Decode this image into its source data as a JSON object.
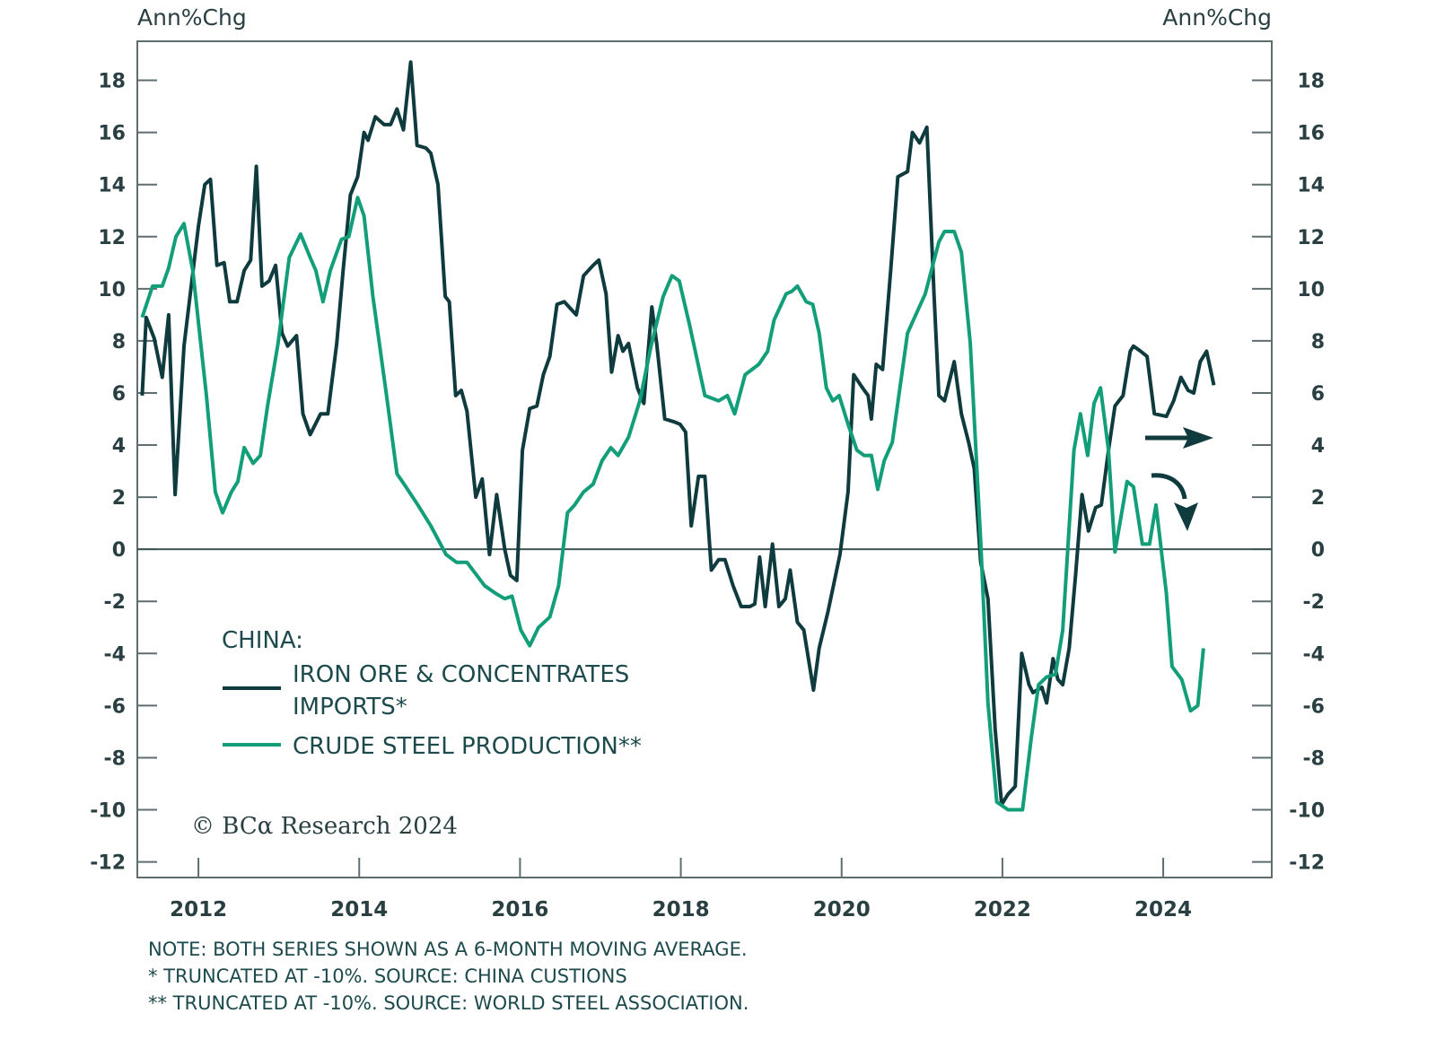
{
  "chart_data": {
    "type": "line",
    "left_axis_label": "Ann%Chg",
    "right_axis_label": "Ann%Chg",
    "ylim": [
      -12.6,
      19.5
    ],
    "xlim": [
      2011.24,
      2025.35
    ],
    "yticks": [
      -12,
      -10,
      -8,
      -6,
      -4,
      -2,
      0,
      2,
      4,
      6,
      8,
      10,
      12,
      14,
      16,
      18
    ],
    "xticks": [
      2012,
      2014,
      2016,
      2018,
      2020,
      2022,
      2024
    ],
    "zero_line": true,
    "grid": false,
    "legend_placement": "bottom-left",
    "legend_title": "CHINA:",
    "series": [
      {
        "name": "IRON ORE & CONCENTRATES IMPORTS*",
        "name_line1": "IRON ORE & CONCENTRATES",
        "name_line2": "IMPORTS*",
        "color": "#0f3b3e",
        "points": [
          [
            2011.3,
            5.9
          ],
          [
            2011.35,
            8.9
          ],
          [
            2011.45,
            8.1
          ],
          [
            2011.55,
            6.6
          ],
          [
            2011.63,
            9.0
          ],
          [
            2011.71,
            2.1
          ],
          [
            2011.82,
            7.8
          ],
          [
            2012.0,
            12.4
          ],
          [
            2012.08,
            14.0
          ],
          [
            2012.15,
            14.2
          ],
          [
            2012.23,
            10.9
          ],
          [
            2012.32,
            11.0
          ],
          [
            2012.39,
            9.5
          ],
          [
            2012.48,
            9.5
          ],
          [
            2012.57,
            10.7
          ],
          [
            2012.65,
            11.1
          ],
          [
            2012.72,
            14.7
          ],
          [
            2012.79,
            10.1
          ],
          [
            2012.88,
            10.3
          ],
          [
            2012.96,
            10.9
          ],
          [
            2013.04,
            8.3
          ],
          [
            2013.11,
            7.8
          ],
          [
            2013.22,
            8.2
          ],
          [
            2013.3,
            5.2
          ],
          [
            2013.39,
            4.4
          ],
          [
            2013.52,
            5.2
          ],
          [
            2013.61,
            5.2
          ],
          [
            2013.72,
            7.9
          ],
          [
            2013.8,
            10.7
          ],
          [
            2013.89,
            13.6
          ],
          [
            2013.98,
            14.3
          ],
          [
            2014.06,
            16.0
          ],
          [
            2014.11,
            15.7
          ],
          [
            2014.2,
            16.6
          ],
          [
            2014.31,
            16.3
          ],
          [
            2014.39,
            16.3
          ],
          [
            2014.47,
            16.9
          ],
          [
            2014.55,
            16.1
          ],
          [
            2014.64,
            18.7
          ],
          [
            2014.72,
            15.5
          ],
          [
            2014.83,
            15.4
          ],
          [
            2014.89,
            15.2
          ],
          [
            2014.98,
            14.0
          ],
          [
            2015.07,
            9.7
          ],
          [
            2015.12,
            9.5
          ],
          [
            2015.2,
            5.9
          ],
          [
            2015.27,
            6.1
          ],
          [
            2015.34,
            5.3
          ],
          [
            2015.45,
            2.0
          ],
          [
            2015.53,
            2.7
          ],
          [
            2015.62,
            -0.2
          ],
          [
            2015.71,
            2.1
          ],
          [
            2015.81,
            0
          ],
          [
            2015.88,
            -1.0
          ],
          [
            2015.96,
            -1.2
          ],
          [
            2016.03,
            3.8
          ],
          [
            2016.12,
            5.4
          ],
          [
            2016.21,
            5.5
          ],
          [
            2016.29,
            6.7
          ],
          [
            2016.37,
            7.4
          ],
          [
            2016.46,
            9.4
          ],
          [
            2016.55,
            9.5
          ],
          [
            2016.7,
            9.0
          ],
          [
            2016.79,
            10.5
          ],
          [
            2016.91,
            10.9
          ],
          [
            2016.98,
            11.1
          ],
          [
            2017.07,
            9.8
          ],
          [
            2017.14,
            6.8
          ],
          [
            2017.22,
            8.2
          ],
          [
            2017.28,
            7.6
          ],
          [
            2017.35,
            7.9
          ],
          [
            2017.46,
            6.2
          ],
          [
            2017.54,
            5.6
          ],
          [
            2017.64,
            9.3
          ],
          [
            2017.7,
            7.9
          ],
          [
            2017.8,
            5.0
          ],
          [
            2017.91,
            4.9
          ],
          [
            2017.99,
            4.8
          ],
          [
            2018.06,
            4.5
          ],
          [
            2018.13,
            0.9
          ],
          [
            2018.22,
            2.8
          ],
          [
            2018.3,
            2.8
          ],
          [
            2018.38,
            -0.8
          ],
          [
            2018.47,
            -0.4
          ],
          [
            2018.55,
            -0.4
          ],
          [
            2018.65,
            -1.4
          ],
          [
            2018.75,
            -2.2
          ],
          [
            2018.86,
            -2.2
          ],
          [
            2018.92,
            -2.1
          ],
          [
            2018.98,
            -0.3
          ],
          [
            2019.05,
            -2.2
          ],
          [
            2019.14,
            0.2
          ],
          [
            2019.22,
            -2.2
          ],
          [
            2019.3,
            -1.9
          ],
          [
            2019.36,
            -0.8
          ],
          [
            2019.45,
            -2.8
          ],
          [
            2019.53,
            -3.1
          ],
          [
            2019.65,
            -5.4
          ],
          [
            2019.72,
            -3.8
          ],
          [
            2019.83,
            -2.4
          ],
          [
            2019.98,
            -0.2
          ],
          [
            2020.08,
            2.2
          ],
          [
            2020.15,
            6.7
          ],
          [
            2020.26,
            6.2
          ],
          [
            2020.33,
            5.9
          ],
          [
            2020.37,
            5.0
          ],
          [
            2020.43,
            7.1
          ],
          [
            2020.51,
            6.9
          ],
          [
            2020.61,
            10.7
          ],
          [
            2020.7,
            14.3
          ],
          [
            2020.82,
            14.5
          ],
          [
            2020.88,
            16.0
          ],
          [
            2020.97,
            15.6
          ],
          [
            2021.06,
            16.2
          ],
          [
            2021.15,
            9.7
          ],
          [
            2021.21,
            5.9
          ],
          [
            2021.28,
            5.7
          ],
          [
            2021.4,
            7.2
          ],
          [
            2021.49,
            5.2
          ],
          [
            2021.58,
            4.1
          ],
          [
            2021.65,
            3.1
          ],
          [
            2021.73,
            -0.5
          ],
          [
            2021.82,
            -1.9
          ],
          [
            2021.91,
            -6.9
          ],
          [
            2021.99,
            -9.8
          ],
          [
            2022.07,
            -9.4
          ],
          [
            2022.16,
            -9.1
          ],
          [
            2022.24,
            -4.0
          ],
          [
            2022.33,
            -5.2
          ],
          [
            2022.38,
            -5.5
          ],
          [
            2022.49,
            -5.3
          ],
          [
            2022.55,
            -5.9
          ],
          [
            2022.63,
            -4.2
          ],
          [
            2022.69,
            -5.0
          ],
          [
            2022.75,
            -5.2
          ],
          [
            2022.83,
            -3.8
          ],
          [
            2022.91,
            -1.0
          ],
          [
            2022.99,
            2.1
          ],
          [
            2023.07,
            0.7
          ],
          [
            2023.16,
            1.6
          ],
          [
            2023.23,
            1.7
          ],
          [
            2023.32,
            3.8
          ],
          [
            2023.4,
            5.5
          ],
          [
            2023.5,
            5.9
          ],
          [
            2023.59,
            7.6
          ],
          [
            2023.63,
            7.8
          ],
          [
            2023.72,
            7.6
          ],
          [
            2023.8,
            7.4
          ],
          [
            2023.89,
            5.2
          ],
          [
            2024.04,
            5.1
          ],
          [
            2024.13,
            5.7
          ],
          [
            2024.22,
            6.6
          ],
          [
            2024.31,
            6.1
          ],
          [
            2024.38,
            6.0
          ],
          [
            2024.46,
            7.2
          ],
          [
            2024.54,
            7.6
          ],
          [
            2024.63,
            6.3
          ]
        ]
      },
      {
        "name": "CRUDE STEEL PRODUCTION**",
        "color": "#139e7a",
        "points": [
          [
            2011.3,
            8.9
          ],
          [
            2011.43,
            10.1
          ],
          [
            2011.55,
            10.1
          ],
          [
            2011.63,
            10.8
          ],
          [
            2011.72,
            12.0
          ],
          [
            2011.82,
            12.5
          ],
          [
            2011.93,
            10.7
          ],
          [
            2012.1,
            5.9
          ],
          [
            2012.21,
            2.2
          ],
          [
            2012.3,
            1.4
          ],
          [
            2012.41,
            2.2
          ],
          [
            2012.49,
            2.6
          ],
          [
            2012.57,
            3.9
          ],
          [
            2012.68,
            3.3
          ],
          [
            2012.77,
            3.6
          ],
          [
            2012.86,
            5.5
          ],
          [
            2012.99,
            7.9
          ],
          [
            2013.13,
            11.2
          ],
          [
            2013.27,
            12.1
          ],
          [
            2013.39,
            11.2
          ],
          [
            2013.46,
            10.7
          ],
          [
            2013.55,
            9.5
          ],
          [
            2013.64,
            10.7
          ],
          [
            2013.78,
            11.9
          ],
          [
            2013.87,
            12.0
          ],
          [
            2013.98,
            13.5
          ],
          [
            2014.06,
            12.8
          ],
          [
            2014.17,
            9.7
          ],
          [
            2014.34,
            5.9
          ],
          [
            2014.47,
            2.9
          ],
          [
            2014.58,
            2.4
          ],
          [
            2014.73,
            1.7
          ],
          [
            2014.89,
            0.9
          ],
          [
            2015.08,
            -0.2
          ],
          [
            2015.21,
            -0.5
          ],
          [
            2015.34,
            -0.5
          ],
          [
            2015.56,
            -1.4
          ],
          [
            2015.7,
            -1.7
          ],
          [
            2015.81,
            -1.9
          ],
          [
            2015.9,
            -1.8
          ],
          [
            2016.01,
            -3.1
          ],
          [
            2016.12,
            -3.7
          ],
          [
            2016.23,
            -3.0
          ],
          [
            2016.37,
            -2.6
          ],
          [
            2016.48,
            -1.4
          ],
          [
            2016.59,
            1.4
          ],
          [
            2016.68,
            1.7
          ],
          [
            2016.79,
            2.2
          ],
          [
            2016.91,
            2.5
          ],
          [
            2017.02,
            3.4
          ],
          [
            2017.13,
            3.9
          ],
          [
            2017.22,
            3.6
          ],
          [
            2017.35,
            4.3
          ],
          [
            2017.49,
            5.7
          ],
          [
            2017.63,
            7.8
          ],
          [
            2017.78,
            9.7
          ],
          [
            2017.89,
            10.5
          ],
          [
            2017.98,
            10.3
          ],
          [
            2018.11,
            8.6
          ],
          [
            2018.3,
            5.9
          ],
          [
            2018.47,
            5.7
          ],
          [
            2018.58,
            5.9
          ],
          [
            2018.67,
            5.2
          ],
          [
            2018.8,
            6.7
          ],
          [
            2018.97,
            7.1
          ],
          [
            2019.08,
            7.6
          ],
          [
            2019.16,
            8.8
          ],
          [
            2019.31,
            9.8
          ],
          [
            2019.38,
            9.9
          ],
          [
            2019.45,
            10.1
          ],
          [
            2019.56,
            9.5
          ],
          [
            2019.64,
            9.4
          ],
          [
            2019.72,
            8.3
          ],
          [
            2019.81,
            6.2
          ],
          [
            2019.89,
            5.7
          ],
          [
            2019.97,
            5.9
          ],
          [
            2020.08,
            4.8
          ],
          [
            2020.19,
            3.8
          ],
          [
            2020.28,
            3.6
          ],
          [
            2020.37,
            3.6
          ],
          [
            2020.45,
            2.3
          ],
          [
            2020.53,
            3.4
          ],
          [
            2020.63,
            4.1
          ],
          [
            2020.82,
            8.3
          ],
          [
            2021.04,
            9.8
          ],
          [
            2021.21,
            11.8
          ],
          [
            2021.28,
            12.2
          ],
          [
            2021.4,
            12.2
          ],
          [
            2021.49,
            11.4
          ],
          [
            2021.6,
            7.9
          ],
          [
            2021.73,
            0.3
          ],
          [
            2021.82,
            -5.9
          ],
          [
            2021.93,
            -9.7
          ],
          [
            2022.07,
            -10
          ],
          [
            2022.25,
            -10
          ],
          [
            2022.36,
            -7.2
          ],
          [
            2022.45,
            -5.2
          ],
          [
            2022.55,
            -4.9
          ],
          [
            2022.66,
            -4.8
          ],
          [
            2022.75,
            -3.1
          ],
          [
            2022.89,
            3.8
          ],
          [
            2022.97,
            5.2
          ],
          [
            2023.06,
            3.6
          ],
          [
            2023.14,
            5.6
          ],
          [
            2023.22,
            6.2
          ],
          [
            2023.32,
            3.8
          ],
          [
            2023.4,
            -0.1
          ],
          [
            2023.55,
            2.6
          ],
          [
            2023.63,
            2.4
          ],
          [
            2023.74,
            0.2
          ],
          [
            2023.83,
            0.2
          ],
          [
            2023.91,
            1.7
          ],
          [
            2024.04,
            -1.7
          ],
          [
            2024.11,
            -4.5
          ],
          [
            2024.23,
            -5.0
          ],
          [
            2024.34,
            -6.2
          ],
          [
            2024.43,
            -6.0
          ],
          [
            2024.5,
            -3.8
          ]
        ]
      }
    ],
    "annotations": [
      {
        "type": "arrow-right",
        "meaning": "iron ore imports continuing",
        "color": "#0f3b3e"
      },
      {
        "type": "arrow-curved-down",
        "meaning": "steel production turning down",
        "color": "#0f3b3e"
      }
    ],
    "copyright": "© BCα Research 2024",
    "notes": [
      "NOTE: BOTH SERIES SHOWN AS A 6-MONTH MOVING AVERAGE.",
      "* TRUNCATED AT -10%. SOURCE: CHINA CUSTIONS",
      "** TRUNCATED AT -10%. SOURCE: WORLD STEEL ASSOCIATION."
    ],
    "colors": {
      "axis": "#5e6e70",
      "dark": "#0f3b3e",
      "green": "#139e7a"
    }
  }
}
